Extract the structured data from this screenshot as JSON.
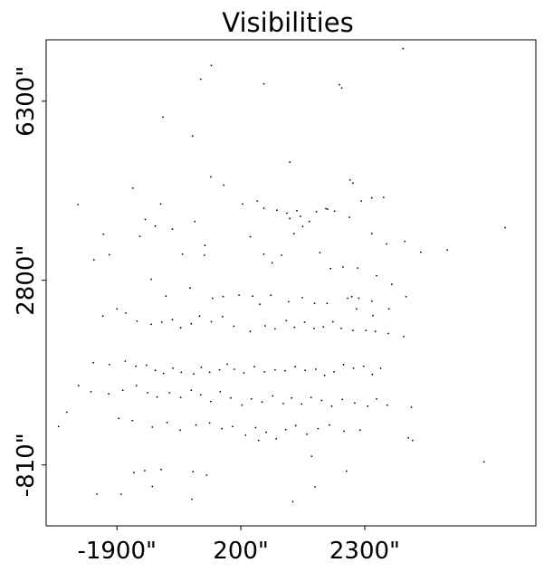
{
  "chart_data": {
    "type": "scatter",
    "title": "Visibilities",
    "xlabel": "",
    "ylabel": "",
    "xlim": [
      -3100,
      5200
    ],
    "ylim": [
      -2000,
      7500
    ],
    "grid": false,
    "x_ticks": [
      {
        "value": -1900,
        "label": "-1900\""
      },
      {
        "value": 200,
        "label": "200\""
      },
      {
        "value": 2300,
        "label": "2300\""
      }
    ],
    "y_ticks": [
      {
        "value": 6300,
        "label": "6300\""
      },
      {
        "value": 2800,
        "label": "2800\""
      },
      {
        "value": -810,
        "label": "-810\""
      }
    ],
    "marker_color": "#000000",
    "points": [
      [
        2950,
        7330
      ],
      [
        -300,
        7000
      ],
      [
        -480,
        6730
      ],
      [
        1870,
        6620
      ],
      [
        1910,
        6560
      ],
      [
        590,
        6640
      ],
      [
        -1120,
        5990
      ],
      [
        -620,
        5620
      ],
      [
        1030,
        5110
      ],
      [
        -1160,
        4290
      ],
      [
        -1630,
        4600
      ],
      [
        -2560,
        4280
      ],
      [
        -2130,
        3700
      ],
      [
        -2030,
        3300
      ],
      [
        -2290,
        3200
      ],
      [
        -1510,
        3660
      ],
      [
        -1420,
        3990
      ],
      [
        -1250,
        3860
      ],
      [
        -960,
        3800
      ],
      [
        -410,
        3480
      ],
      [
        -790,
        3310
      ],
      [
        -310,
        4820
      ],
      [
        -90,
        4660
      ],
      [
        230,
        4290
      ],
      [
        480,
        4350
      ],
      [
        590,
        4210
      ],
      [
        810,
        4170
      ],
      [
        980,
        4110
      ],
      [
        1030,
        4010
      ],
      [
        1150,
        4160
      ],
      [
        1210,
        4050
      ],
      [
        1360,
        3950
      ],
      [
        1480,
        4140
      ],
      [
        1640,
        4200
      ],
      [
        1790,
        4150
      ],
      [
        2040,
        4030
      ],
      [
        2240,
        4350
      ],
      [
        2420,
        3710
      ],
      [
        2670,
        3510
      ],
      [
        3250,
        3350
      ],
      [
        3700,
        3390
      ],
      [
        2980,
        3560
      ],
      [
        2420,
        4410
      ],
      [
        2620,
        4420
      ],
      [
        1670,
        4190
      ],
      [
        2050,
        4760
      ],
      [
        2100,
        4700
      ],
      [
        -580,
        3950
      ],
      [
        -420,
        3290
      ],
      [
        360,
        3650
      ],
      [
        590,
        3310
      ],
      [
        730,
        3140
      ],
      [
        890,
        3290
      ],
      [
        1100,
        3710
      ],
      [
        1250,
        3850
      ],
      [
        1540,
        3340
      ],
      [
        1720,
        3030
      ],
      [
        1930,
        3060
      ],
      [
        2180,
        3040
      ],
      [
        2500,
        2890
      ],
      [
        2760,
        2720
      ],
      [
        2010,
        2450
      ],
      [
        2200,
        2450
      ],
      [
        2420,
        2390
      ],
      [
        3000,
        2480
      ],
      [
        -1320,
        2820
      ],
      [
        -1070,
        2490
      ],
      [
        -660,
        2650
      ],
      [
        -280,
        2450
      ],
      [
        -100,
        2480
      ],
      [
        170,
        2510
      ],
      [
        400,
        2490
      ],
      [
        520,
        2330
      ],
      [
        710,
        2510
      ],
      [
        1010,
        2380
      ],
      [
        1240,
        2460
      ],
      [
        1450,
        2350
      ],
      [
        1660,
        2350
      ],
      [
        2080,
        2480
      ],
      [
        2160,
        2240
      ],
      [
        2440,
        2110
      ],
      [
        2710,
        2240
      ],
      [
        -2140,
        2100
      ],
      [
        -1900,
        2240
      ],
      [
        -1750,
        2160
      ],
      [
        -1560,
        2000
      ],
      [
        -1320,
        1940
      ],
      [
        -1140,
        1980
      ],
      [
        -960,
        2030
      ],
      [
        -820,
        1870
      ],
      [
        -640,
        1950
      ],
      [
        -500,
        2100
      ],
      [
        -300,
        1990
      ],
      [
        -110,
        2090
      ],
      [
        80,
        1900
      ],
      [
        360,
        1800
      ],
      [
        610,
        1910
      ],
      [
        780,
        1850
      ],
      [
        970,
        2010
      ],
      [
        1110,
        1880
      ],
      [
        1280,
        1980
      ],
      [
        1440,
        1860
      ],
      [
        1600,
        1890
      ],
      [
        1760,
        1990
      ],
      [
        1900,
        1860
      ],
      [
        2100,
        1820
      ],
      [
        2320,
        1820
      ],
      [
        2480,
        1800
      ],
      [
        2700,
        1760
      ],
      [
        2960,
        1700
      ],
      [
        -2300,
        1190
      ],
      [
        -2030,
        1150
      ],
      [
        -1760,
        1220
      ],
      [
        -1580,
        1120
      ],
      [
        -1400,
        1140
      ],
      [
        -1250,
        1040
      ],
      [
        -1110,
        980
      ],
      [
        -950,
        1080
      ],
      [
        -810,
        1000
      ],
      [
        -600,
        970
      ],
      [
        -470,
        1100
      ],
      [
        -330,
        1000
      ],
      [
        -160,
        1050
      ],
      [
        -30,
        1160
      ],
      [
        90,
        1060
      ],
      [
        250,
        990
      ],
      [
        430,
        1110
      ],
      [
        600,
        1010
      ],
      [
        780,
        1050
      ],
      [
        950,
        1030
      ],
      [
        1120,
        1110
      ],
      [
        1290,
        1040
      ],
      [
        1470,
        1060
      ],
      [
        1620,
        940
      ],
      [
        1780,
        1010
      ],
      [
        1940,
        1150
      ],
      [
        2110,
        1080
      ],
      [
        2280,
        1120
      ],
      [
        2430,
        960
      ],
      [
        2570,
        1080
      ],
      [
        -2550,
        740
      ],
      [
        -2340,
        620
      ],
      [
        -2040,
        580
      ],
      [
        -1800,
        650
      ],
      [
        -1570,
        740
      ],
      [
        -1380,
        600
      ],
      [
        -1220,
        520
      ],
      [
        -1010,
        600
      ],
      [
        -820,
        510
      ],
      [
        -640,
        650
      ],
      [
        -480,
        560
      ],
      [
        -310,
        430
      ],
      [
        -150,
        620
      ],
      [
        30,
        500
      ],
      [
        220,
        360
      ],
      [
        380,
        480
      ],
      [
        560,
        420
      ],
      [
        740,
        540
      ],
      [
        920,
        390
      ],
      [
        1060,
        500
      ],
      [
        1230,
        380
      ],
      [
        1390,
        510
      ],
      [
        1570,
        450
      ],
      [
        1740,
        340
      ],
      [
        1920,
        470
      ],
      [
        2130,
        400
      ],
      [
        2350,
        340
      ],
      [
        2500,
        480
      ],
      [
        2680,
        360
      ],
      [
        3090,
        320
      ],
      [
        -2750,
        220
      ],
      [
        -1870,
        100
      ],
      [
        -1640,
        60
      ],
      [
        -1300,
        -70
      ],
      [
        -1050,
        20
      ],
      [
        -830,
        -130
      ],
      [
        -560,
        -30
      ],
      [
        -330,
        10
      ],
      [
        -120,
        -100
      ],
      [
        60,
        -60
      ],
      [
        280,
        -230
      ],
      [
        450,
        -80
      ],
      [
        630,
        -170
      ],
      [
        800,
        -300
      ],
      [
        960,
        -120
      ],
      [
        1130,
        -40
      ],
      [
        1320,
        -210
      ],
      [
        1510,
        -100
      ],
      [
        1700,
        -30
      ],
      [
        1950,
        -150
      ],
      [
        2220,
        -130
      ],
      [
        3040,
        -280
      ],
      [
        3110,
        -330
      ],
      [
        4320,
        -750
      ],
      [
        -2890,
        -60
      ],
      [
        -1610,
        -960
      ],
      [
        -1300,
        -1230
      ],
      [
        -1150,
        -900
      ],
      [
        -610,
        -940
      ],
      [
        -630,
        -1480
      ],
      [
        -380,
        -1010
      ],
      [
        -2240,
        -1380
      ],
      [
        -1830,
        -1380
      ],
      [
        -1430,
        -920
      ],
      [
        1080,
        -1530
      ],
      [
        1460,
        -1240
      ],
      [
        1990,
        -930
      ],
      [
        1400,
        -640
      ],
      [
        500,
        -330
      ],
      [
        4680,
        3830
      ]
    ]
  }
}
